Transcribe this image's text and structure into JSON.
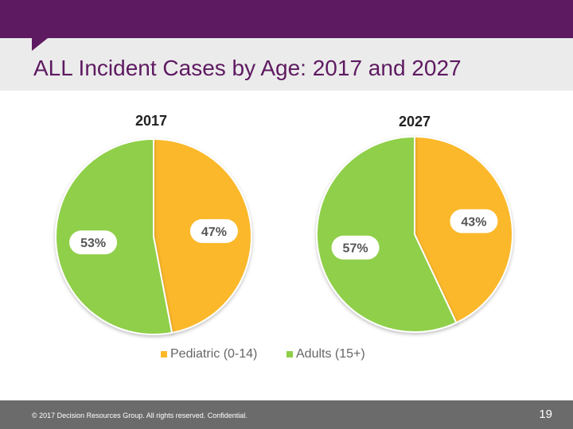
{
  "slide": {
    "title": "ALL Incident Cases by Age: 2017 and 2027",
    "brand_color": "#5e1a61",
    "footer_text": "© 2017 Decision Resources Group. All rights reserved. Confidential.",
    "page_number": "19"
  },
  "chart_data": [
    {
      "type": "pie",
      "title": "2017",
      "categories": [
        "Pediatric (0-14)",
        "Adults (15+)"
      ],
      "values": [
        47,
        53
      ],
      "labels": [
        "47%",
        "53%"
      ],
      "colors": [
        "#fbb829",
        "#8fcf4a"
      ]
    },
    {
      "type": "pie",
      "title": "2027",
      "categories": [
        "Pediatric (0-14)",
        "Adults (15+)"
      ],
      "values": [
        43,
        57
      ],
      "labels": [
        "43%",
        "57%"
      ],
      "colors": [
        "#fbb829",
        "#8fcf4a"
      ]
    }
  ],
  "legend": {
    "placement": "bottom",
    "items": [
      {
        "label": "Pediatric (0-14)",
        "color": "#fbb829"
      },
      {
        "label": "Adults (15+)",
        "color": "#8fcf4a"
      }
    ]
  }
}
